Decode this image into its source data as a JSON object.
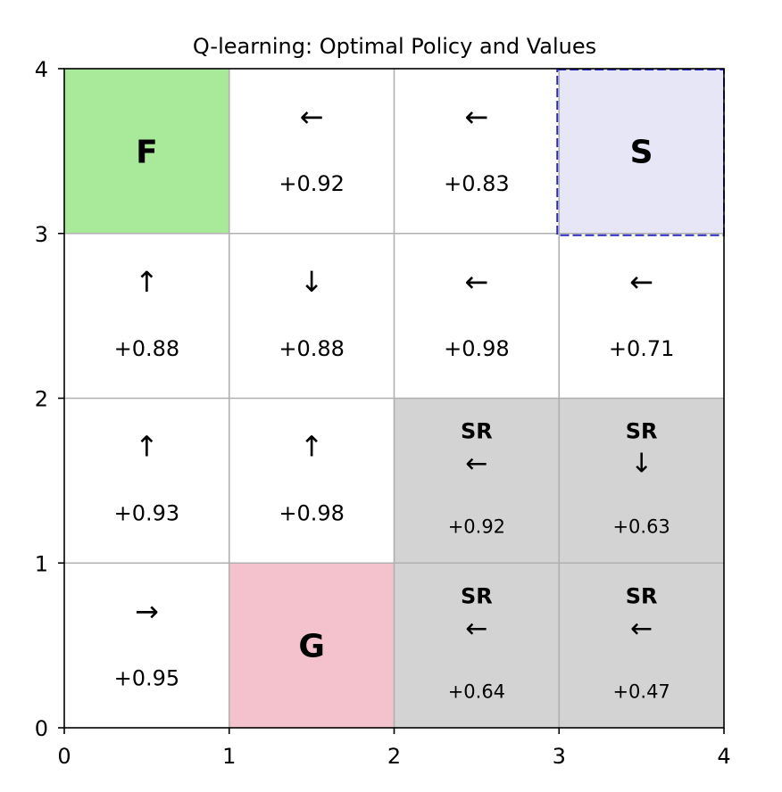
{
  "chart_data": {
    "type": "heatmap",
    "title": "Q-learning: Optimal Policy and Values",
    "xlabel": "",
    "ylabel": "",
    "xlim": [
      0,
      4
    ],
    "ylim": [
      0,
      4
    ],
    "x_ticks": [
      "0",
      "1",
      "2",
      "3",
      "4"
    ],
    "y_ticks": [
      "0",
      "1",
      "2",
      "3",
      "4"
    ],
    "grid": true,
    "colors": {
      "finish": "#a8e99a",
      "goal": "#f4c2cc",
      "start": "#e6e6f7",
      "start_border": "#2b2bc4",
      "sr": "#d3d3d3",
      "empty": "#ffffff",
      "grid_line": "#b0b0b0"
    },
    "cells": [
      {
        "x": 0,
        "y": 3,
        "kind": "finish",
        "label": "F"
      },
      {
        "x": 1,
        "y": 3,
        "kind": "empty",
        "arrow": "←",
        "value": "+0.92"
      },
      {
        "x": 2,
        "y": 3,
        "kind": "empty",
        "arrow": "←",
        "value": "+0.83"
      },
      {
        "x": 3,
        "y": 3,
        "kind": "start",
        "label": "S"
      },
      {
        "x": 0,
        "y": 2,
        "kind": "empty",
        "arrow": "↑",
        "value": "+0.88"
      },
      {
        "x": 1,
        "y": 2,
        "kind": "empty",
        "arrow": "↓",
        "value": "+0.88"
      },
      {
        "x": 2,
        "y": 2,
        "kind": "empty",
        "arrow": "←",
        "value": "+0.98"
      },
      {
        "x": 3,
        "y": 2,
        "kind": "empty",
        "arrow": "←",
        "value": "+0.71"
      },
      {
        "x": 0,
        "y": 1,
        "kind": "empty",
        "arrow": "↑",
        "value": "+0.93"
      },
      {
        "x": 1,
        "y": 1,
        "kind": "empty",
        "arrow": "↑",
        "value": "+0.98"
      },
      {
        "x": 2,
        "y": 1,
        "kind": "sr",
        "tag": "SR",
        "arrow": "←",
        "value": "+0.92"
      },
      {
        "x": 3,
        "y": 1,
        "kind": "sr",
        "tag": "SR",
        "arrow": "↓",
        "value": "+0.63"
      },
      {
        "x": 0,
        "y": 0,
        "kind": "empty",
        "arrow": "→",
        "value": "+0.95"
      },
      {
        "x": 1,
        "y": 0,
        "kind": "goal",
        "label": "G"
      },
      {
        "x": 2,
        "y": 0,
        "kind": "sr",
        "tag": "SR",
        "arrow": "←",
        "value": "+0.64"
      },
      {
        "x": 3,
        "y": 0,
        "kind": "sr",
        "tag": "SR",
        "arrow": "←",
        "value": "+0.47"
      }
    ]
  }
}
